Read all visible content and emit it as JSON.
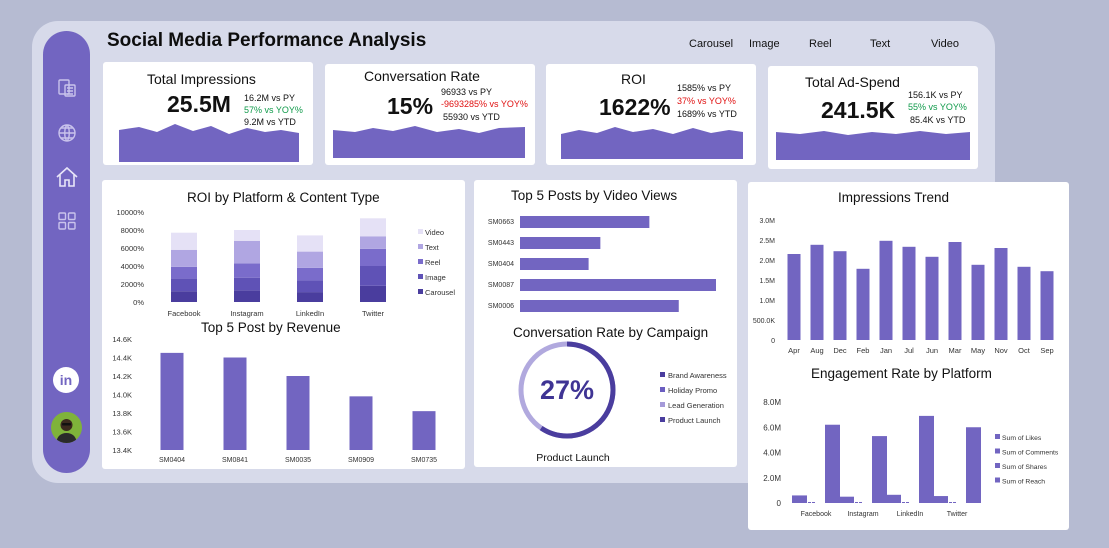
{
  "header": {
    "title": "Social Media Performance Analysis"
  },
  "filters": [
    "Carousel",
    "Image",
    "Reel",
    "Text",
    "Video"
  ],
  "colors": {
    "primary": "#7265c1",
    "sidebar": "#7265c1",
    "frame": "#d7daea",
    "background": "#b6bbd2",
    "positive": "#0f9a4a",
    "negative": "#e01010"
  },
  "sidebar_icons": [
    "document-stack-icon",
    "globe-icon",
    "home-icon",
    "grid-icon",
    "linkedin-icon",
    "avatar"
  ],
  "kpis": [
    {
      "label": "Total Impressions",
      "value": "25.5M",
      "lines": [
        {
          "text": "16.2M  vs PY",
          "tone": "normal"
        },
        {
          "text": "57%  vs YOY%",
          "tone": "green"
        },
        {
          "text": "9.2M  vs YTD",
          "tone": "normal"
        }
      ]
    },
    {
      "label": "Conversation Rate",
      "value": "15%",
      "lines": [
        {
          "text": "96933  vs PY",
          "tone": "normal"
        },
        {
          "text": "-9693285%  vs YOY%",
          "tone": "red"
        },
        {
          "text": "55930 vs YTD",
          "tone": "normal"
        }
      ]
    },
    {
      "label": "ROI",
      "value": "1622%",
      "lines": [
        {
          "text": "1585%  vs PY",
          "tone": "normal"
        },
        {
          "text": "37% vs YOY%",
          "tone": "red"
        },
        {
          "text": "1689% vs YTD",
          "tone": "normal"
        }
      ]
    },
    {
      "label": "Total Ad-Spend",
      "value": "241.5K",
      "lines": [
        {
          "text": "156.1K  vs PY",
          "tone": "normal"
        },
        {
          "text": "55% vs YOY%",
          "tone": "green"
        },
        {
          "text": "85.4K  vs YTD",
          "tone": "normal"
        }
      ]
    }
  ],
  "chart_data": [
    {
      "id": "roi_by_platform",
      "type": "bar",
      "stacked": true,
      "title": "ROI by Platform & Content Type",
      "categories": [
        "Facebook",
        "Instagram",
        "LinkedIn",
        "Twitter"
      ],
      "y_ticks": [
        "0%",
        "2000%",
        "4000%",
        "6000%",
        "8000%",
        "10000%"
      ],
      "ylim": [
        0,
        10000
      ],
      "series": [
        {
          "name": "Carousel",
          "color": "#4a3d9e",
          "values": [
            1200,
            1300,
            1100,
            1800
          ]
        },
        {
          "name": "Image",
          "color": "#5f52b6",
          "values": [
            1400,
            1400,
            1300,
            2200
          ]
        },
        {
          "name": "Reel",
          "color": "#7a6ccb",
          "values": [
            1300,
            1600,
            1400,
            1900
          ]
        },
        {
          "name": "Text",
          "color": "#b0a6e2",
          "values": [
            1900,
            2500,
            1800,
            1400
          ]
        },
        {
          "name": "Video",
          "color": "#e5e1f6",
          "values": [
            1900,
            1200,
            1800,
            2000
          ]
        }
      ],
      "legend": "right"
    },
    {
      "id": "top5_revenue",
      "type": "bar",
      "title": "Top 5 Post by Revenue",
      "categories": [
        "SM0404",
        "SM0841",
        "SM0035",
        "SM0909",
        "SM0735"
      ],
      "values": [
        14.45,
        14.4,
        14.2,
        13.98,
        13.82
      ],
      "y_ticks": [
        "13.4K",
        "13.6K",
        "13.8K",
        "14.0K",
        "14.2K",
        "14.4K",
        "14.6K"
      ],
      "ylim": [
        13.4,
        14.6
      ]
    },
    {
      "id": "top5_video",
      "type": "bar",
      "orientation": "horizontal",
      "title": "Top 5 Posts by Video Views",
      "categories": [
        "SM0663",
        "SM0443",
        "SM0404",
        "SM0087",
        "SM0006"
      ],
      "values": [
        66,
        41,
        35,
        100,
        81
      ]
    },
    {
      "id": "conv_rate_campaign",
      "type": "pie",
      "title": "Conversation Rate by Campaign",
      "center_label": "27%",
      "caption": "Product Launch",
      "value": 27,
      "legend_items": [
        {
          "name": "Brand Awareness",
          "color": "#4a3d9e"
        },
        {
          "name": "Holiday Promo",
          "color": "#6b5ec0"
        },
        {
          "name": "Lead Generation",
          "color": "#a59ad9"
        },
        {
          "name": "Product Launch",
          "color": "#4a3d9e"
        }
      ]
    },
    {
      "id": "impressions_trend",
      "type": "bar",
      "title": "Impressions Trend",
      "categories": [
        "Apr",
        "Aug",
        "Dec",
        "Feb",
        "Jan",
        "Jul",
        "Jun",
        "Mar",
        "May",
        "Nov",
        "Oct",
        "Sep"
      ],
      "values": [
        2.15,
        2.38,
        2.22,
        1.78,
        2.48,
        2.33,
        2.08,
        2.45,
        1.88,
        2.3,
        1.83,
        1.72
      ],
      "y_ticks": [
        "0",
        "500.0K",
        "1.0M",
        "1.5M",
        "2.0M",
        "2.5M",
        "3.0M"
      ],
      "ylim": [
        0,
        3.0
      ]
    },
    {
      "id": "engagement_by_platform",
      "type": "bar",
      "title": "Engagement Rate by Platform",
      "categories": [
        "Facebook",
        "Instagram",
        "LinkedIn",
        "Twitter"
      ],
      "y_ticks": [
        "0",
        "2.0M",
        "4.0M",
        "6.0M",
        "8.0M"
      ],
      "ylim": [
        0,
        8.0
      ],
      "series": [
        {
          "name": "Sum of Likes",
          "color": "#7265c1",
          "values": [
            0.6,
            0.5,
            0.65,
            0.55
          ]
        },
        {
          "name": "Sum of Comments",
          "color": "#7265c1",
          "values": [
            0.05,
            0.05,
            0.05,
            0.05
          ]
        },
        {
          "name": "Sum of Shares",
          "color": "#7265c1",
          "values": [
            0.08,
            0.08,
            0.08,
            0.08
          ]
        },
        {
          "name": "Sum of Reach",
          "color": "#7265c1",
          "values": [
            6.2,
            5.3,
            6.9,
            6.0
          ]
        }
      ],
      "legend": "right"
    }
  ]
}
